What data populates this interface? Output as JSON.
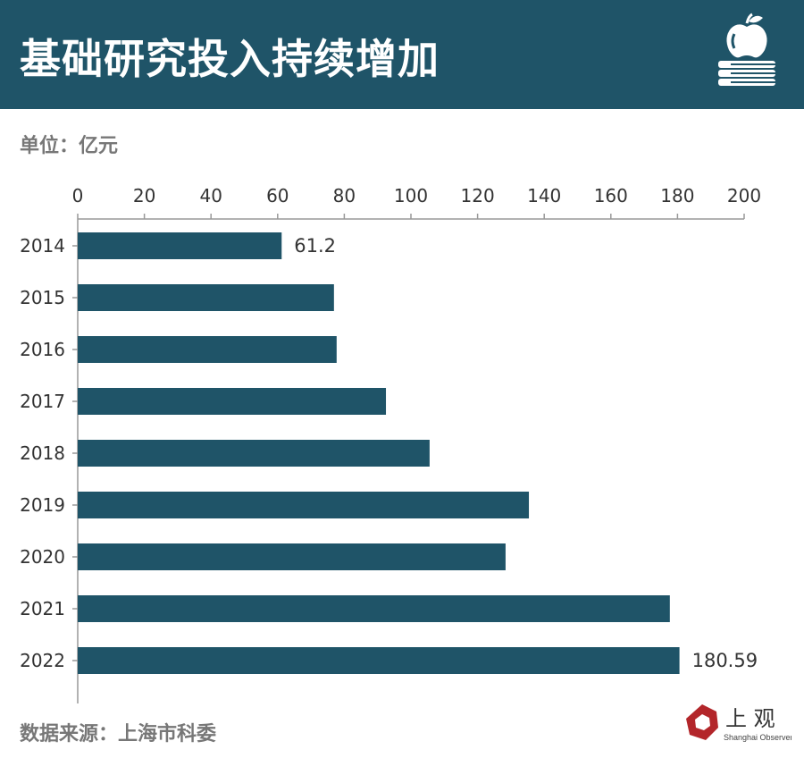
{
  "header": {
    "title": "基础研究投入持续增加",
    "icon": "apple-on-books-icon"
  },
  "unit": "单位：亿元",
  "source": "数据来源：上海市科委",
  "logo": {
    "name": "上观",
    "sub": "Shanghai Observer"
  },
  "colors": {
    "header": "#1f5468",
    "bar": "#1f5468"
  },
  "chart_data": {
    "type": "bar",
    "orientation": "horizontal",
    "title": "基础研究投入持续增加",
    "xlabel": "",
    "ylabel": "",
    "unit": "亿元",
    "categories": [
      "2014",
      "2015",
      "2016",
      "2017",
      "2018",
      "2019",
      "2020",
      "2021",
      "2022"
    ],
    "values": [
      61.2,
      76.9,
      77.7,
      92.5,
      105.6,
      135.4,
      128.4,
      177.7,
      180.59
    ],
    "data_labels": {
      "2014": "61.2",
      "2022": "180.59"
    },
    "xlim": [
      0,
      200
    ],
    "xticks": [
      0,
      20,
      40,
      60,
      80,
      100,
      120,
      140,
      160,
      180,
      200
    ]
  }
}
